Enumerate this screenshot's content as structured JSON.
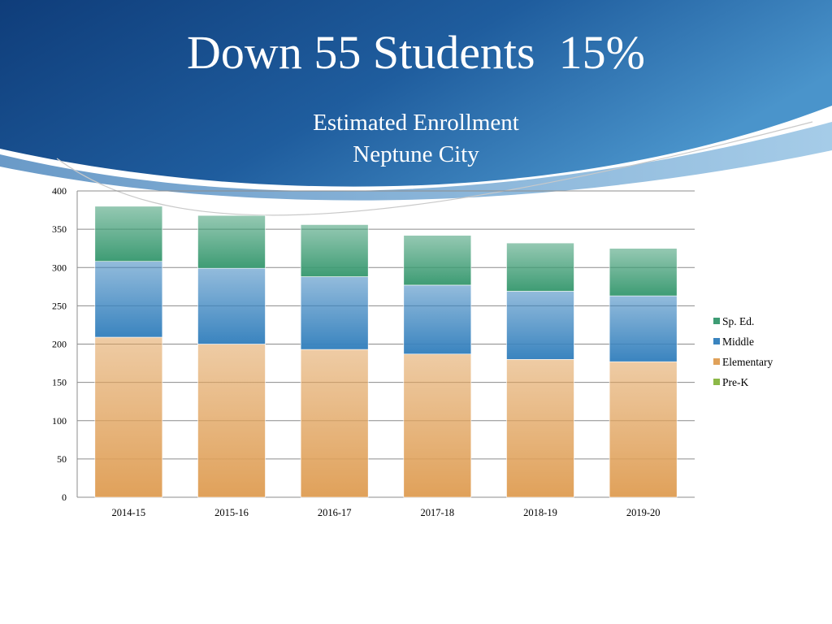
{
  "slide": {
    "title": "Down 55 Students  15%"
  },
  "colors": {
    "header_dark": "#0f3d7a",
    "header_light": "#3d8ac4",
    "gridline": "#8c8c8c",
    "axis_text": "#000000"
  },
  "chart_data": {
    "type": "bar",
    "stacked": true,
    "title": "Estimated Enrollment",
    "subtitle": "Neptune City",
    "xlabel": "",
    "ylabel": "",
    "ylim": [
      0,
      400
    ],
    "yticks": [
      0,
      50,
      100,
      150,
      200,
      250,
      300,
      350,
      400
    ],
    "grid": true,
    "legend_position": "right",
    "categories": [
      "2014-15",
      "2015-16",
      "2016-17",
      "2017-18",
      "2018-19",
      "2019-20"
    ],
    "series": [
      {
        "name": "Pre-K",
        "color": "#8cb848",
        "values": [
          0,
          0,
          0,
          0,
          0,
          0
        ]
      },
      {
        "name": "Elementary",
        "color": "#e0a15a",
        "values": [
          209,
          200,
          193,
          187,
          180,
          177
        ]
      },
      {
        "name": "Middle",
        "color": "#3a84bf",
        "values": [
          99,
          99,
          95,
          90,
          89,
          86
        ]
      },
      {
        "name": "Sp. Ed.",
        "color": "#3e9c74",
        "values": [
          72,
          69,
          68,
          65,
          63,
          62
        ]
      }
    ],
    "legend_order": [
      "Sp. Ed.",
      "Middle",
      "Elementary",
      "Pre-K"
    ]
  }
}
